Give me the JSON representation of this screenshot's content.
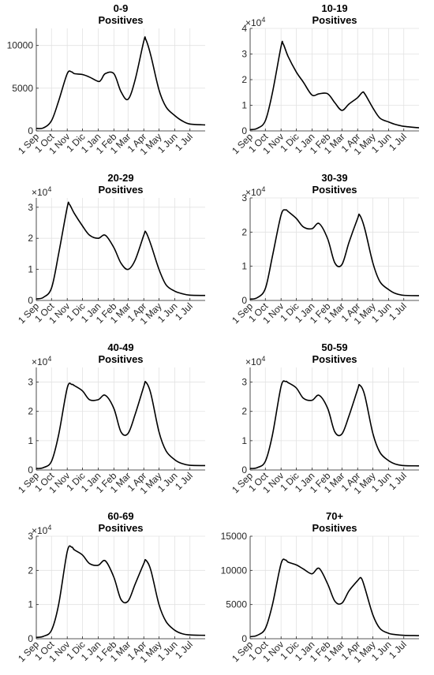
{
  "shared": {
    "x_tick_labels": [
      "1 Sep",
      "1 Oct",
      "1 Nov",
      "1 Dic",
      "1 Jan",
      "1 Feb",
      "1 Mar",
      "1 Apr",
      "1 May",
      "1 Jun",
      "1 Jul"
    ],
    "subtitle": "Positives",
    "exponent_base": "×10",
    "exponent_power": "4"
  },
  "chart_data": [
    {
      "type": "line",
      "title": "0-9",
      "subtitle": "Positives",
      "grid": true,
      "xlim": [
        "1 Sep",
        "end Jul"
      ],
      "ylim": [
        0,
        12000
      ],
      "yticks": [
        0,
        5000,
        10000
      ],
      "ytick_labels": [
        "0",
        "5000",
        "10000"
      ],
      "y_exponent": null,
      "series": [
        {
          "x": [
            "1 Sep",
            "15 Sep",
            "1 Oct",
            "15 Oct",
            "1 Nov",
            "10 Nov",
            "15 Nov",
            "1 Dic",
            "15 Dic",
            "1 Jan",
            "7 Jan",
            "15 Jan",
            "1 Feb",
            "15 Feb",
            "1 Mar",
            "15 Mar",
            "1 Apr",
            "5 Apr",
            "15 Apr",
            "1 May",
            "15 May",
            "1 Jun",
            "15 Jun",
            "1 Jul",
            "31 Jul"
          ],
          "y": [
            300,
            350,
            1200,
            3500,
            6700,
            6900,
            6700,
            6600,
            6300,
            5800,
            6000,
            6700,
            6700,
            4600,
            3700,
            6000,
            10500,
            10700,
            8800,
            4800,
            2800,
            1800,
            1200,
            800,
            700
          ]
        }
      ]
    },
    {
      "type": "line",
      "title": "10-19",
      "subtitle": "Positives",
      "grid": true,
      "xlim": [
        "1 Sep",
        "end Jul"
      ],
      "ylim": [
        0,
        40000
      ],
      "yticks": [
        0,
        10000,
        20000,
        30000,
        40000
      ],
      "ytick_labels": [
        "0",
        "1",
        "2",
        "3",
        "4"
      ],
      "y_exponent": 4,
      "series": [
        {
          "x": [
            "1 Sep",
            "15 Sep",
            "1 Oct",
            "15 Oct",
            "1 Nov",
            "5 Nov",
            "15 Nov",
            "1 Dic",
            "15 Dic",
            "1 Jan",
            "15 Jan",
            "1 Feb",
            "15 Feb",
            "1 Mar",
            "15 Mar",
            "1 Apr",
            "10 Apr",
            "15 Apr",
            "1 May",
            "15 May",
            "1 Jun",
            "15 Jun",
            "1 Jul",
            "31 Jul"
          ],
          "y": [
            500,
            1000,
            4000,
            15000,
            33000,
            34000,
            29000,
            23000,
            19000,
            14000,
            14500,
            14500,
            11000,
            8000,
            10500,
            13000,
            15000,
            14500,
            9000,
            5000,
            3500,
            2500,
            1800,
            1200
          ]
        }
      ]
    },
    {
      "type": "line",
      "title": "20-29",
      "subtitle": "Positives",
      "grid": true,
      "xlim": [
        "1 Sep",
        "end Jul"
      ],
      "ylim": [
        0,
        33000
      ],
      "yticks": [
        0,
        10000,
        20000,
        30000
      ],
      "ytick_labels": [
        "0",
        "1",
        "2",
        "3"
      ],
      "y_exponent": 4,
      "series": [
        {
          "x": [
            "1 Sep",
            "15 Sep",
            "1 Oct",
            "15 Oct",
            "1 Nov",
            "5 Nov",
            "15 Nov",
            "1 Dic",
            "15 Dic",
            "1 Jan",
            "15 Jan",
            "1 Feb",
            "15 Feb",
            "1 Mar",
            "15 Mar",
            "1 Apr",
            "5 Apr",
            "15 Apr",
            "1 May",
            "15 May",
            "1 Jun",
            "15 Jun",
            "1 Jul",
            "31 Jul"
          ],
          "y": [
            500,
            1000,
            4000,
            15000,
            30000,
            31000,
            28000,
            24000,
            21000,
            20000,
            21000,
            17000,
            12000,
            10000,
            13000,
            21000,
            22000,
            18000,
            10000,
            5000,
            3000,
            2200,
            1700,
            1600
          ]
        }
      ]
    },
    {
      "type": "line",
      "title": "30-39",
      "subtitle": "Positives",
      "grid": true,
      "xlim": [
        "1 Sep",
        "end Jul"
      ],
      "ylim": [
        0,
        30000
      ],
      "yticks": [
        0,
        10000,
        20000,
        30000
      ],
      "ytick_labels": [
        "0",
        "1",
        "2",
        "3"
      ],
      "y_exponent": 4,
      "series": [
        {
          "x": [
            "1 Sep",
            "15 Sep",
            "1 Oct",
            "15 Oct",
            "1 Nov",
            "10 Nov",
            "15 Nov",
            "1 Dic",
            "15 Dic",
            "1 Jan",
            "15 Jan",
            "1 Feb",
            "15 Feb",
            "1 Mar",
            "15 Mar",
            "1 Apr",
            "5 Apr",
            "15 Apr",
            "1 May",
            "15 May",
            "1 Jun",
            "15 Jun",
            "1 Jul",
            "31 Jul"
          ],
          "y": [
            400,
            800,
            3500,
            13000,
            25000,
            26500,
            26000,
            24000,
            21500,
            21000,
            22500,
            18000,
            11000,
            10500,
            17000,
            24000,
            25000,
            21000,
            11000,
            5500,
            3200,
            2000,
            1500,
            1400
          ]
        }
      ]
    },
    {
      "type": "line",
      "title": "40-49",
      "subtitle": "Positives",
      "grid": true,
      "xlim": [
        "1 Sep",
        "end Jul"
      ],
      "ylim": [
        0,
        35000
      ],
      "yticks": [
        0,
        10000,
        20000,
        30000
      ],
      "ytick_labels": [
        "0",
        "1",
        "2",
        "3"
      ],
      "y_exponent": 4,
      "series": [
        {
          "x": [
            "1 Sep",
            "15 Sep",
            "1 Oct",
            "15 Oct",
            "1 Nov",
            "10 Nov",
            "15 Nov",
            "1 Dic",
            "15 Dic",
            "1 Jan",
            "15 Jan",
            "1 Feb",
            "15 Feb",
            "1 Mar",
            "15 Mar",
            "1 Apr",
            "5 Apr",
            "15 Apr",
            "1 May",
            "15 May",
            "1 Jun",
            "15 Jun",
            "1 Jul",
            "31 Jul"
          ],
          "y": [
            500,
            800,
            3000,
            12000,
            28000,
            29200,
            28800,
            27000,
            24000,
            24000,
            25500,
            21000,
            13000,
            12500,
            19000,
            28500,
            30000,
            26000,
            13000,
            6500,
            3500,
            2200,
            1600,
            1500
          ]
        }
      ]
    },
    {
      "type": "line",
      "title": "50-59",
      "subtitle": "Positives",
      "grid": true,
      "xlim": [
        "1 Sep",
        "end Jul"
      ],
      "ylim": [
        0,
        35000
      ],
      "yticks": [
        0,
        10000,
        20000,
        30000
      ],
      "ytick_labels": [
        "0",
        "1",
        "2",
        "3"
      ],
      "y_exponent": 4,
      "series": [
        {
          "x": [
            "1 Sep",
            "15 Sep",
            "1 Oct",
            "15 Oct",
            "1 Nov",
            "10 Nov",
            "15 Nov",
            "1 Dic",
            "15 Dic",
            "1 Jan",
            "15 Jan",
            "1 Feb",
            "15 Feb",
            "1 Mar",
            "15 Mar",
            "1 Apr",
            "5 Apr",
            "15 Apr",
            "1 May",
            "15 May",
            "1 Jun",
            "15 Jun",
            "1 Jul",
            "31 Jul"
          ],
          "y": [
            500,
            800,
            3000,
            12000,
            28500,
            30200,
            29800,
            28000,
            24500,
            23800,
            25500,
            21000,
            13000,
            12300,
            18500,
            27500,
            29000,
            25500,
            12500,
            6000,
            3200,
            2000,
            1500,
            1400
          ]
        }
      ]
    },
    {
      "type": "line",
      "title": "60-69",
      "subtitle": "Positives",
      "grid": true,
      "xlim": [
        "1 Sep",
        "end Jul"
      ],
      "ylim": [
        0,
        30000
      ],
      "yticks": [
        0,
        10000,
        20000,
        30000
      ],
      "ytick_labels": [
        "0",
        "1",
        "2",
        "3"
      ],
      "y_exponent": 4,
      "series": [
        {
          "x": [
            "1 Sep",
            "15 Sep",
            "1 Oct",
            "15 Oct",
            "1 Nov",
            "10 Nov",
            "15 Nov",
            "1 Dic",
            "15 Dic",
            "1 Jan",
            "15 Jan",
            "1 Feb",
            "15 Feb",
            "1 Mar",
            "15 Mar",
            "1 Apr",
            "5 Apr",
            "15 Apr",
            "1 May",
            "15 May",
            "1 Jun",
            "15 Jun",
            "1 Jul",
            "31 Jul"
          ],
          "y": [
            400,
            700,
            2500,
            10000,
            25500,
            26800,
            26000,
            24500,
            22000,
            21500,
            22800,
            18000,
            11500,
            11000,
            16000,
            22000,
            23000,
            20000,
            10000,
            5000,
            2500,
            1500,
            1100,
            1000
          ]
        }
      ]
    },
    {
      "type": "line",
      "title": "70+",
      "subtitle": "Positives",
      "grid": true,
      "xlim": [
        "1 Sep",
        "end Jul"
      ],
      "ylim": [
        0,
        15000
      ],
      "yticks": [
        0,
        5000,
        10000,
        15000
      ],
      "ytick_labels": [
        "0",
        "5000",
        "10000",
        "15000"
      ],
      "y_exponent": null,
      "series": [
        {
          "x": [
            "1 Sep",
            "15 Sep",
            "1 Oct",
            "15 Oct",
            "1 Nov",
            "10 Nov",
            "15 Nov",
            "1 Dic",
            "15 Dic",
            "1 Jan",
            "15 Jan",
            "1 Feb",
            "15 Feb",
            "1 Mar",
            "15 Mar",
            "1 Apr",
            "8 Apr",
            "15 Apr",
            "1 May",
            "15 May",
            "1 Jun",
            "15 Jun",
            "1 Jul",
            "31 Jul"
          ],
          "y": [
            300,
            500,
            1500,
            5000,
            11000,
            11500,
            11200,
            10800,
            10200,
            9500,
            10300,
            8000,
            5500,
            5200,
            7000,
            8500,
            8900,
            7500,
            3500,
            1500,
            800,
            600,
            500,
            450
          ]
        }
      ]
    }
  ]
}
